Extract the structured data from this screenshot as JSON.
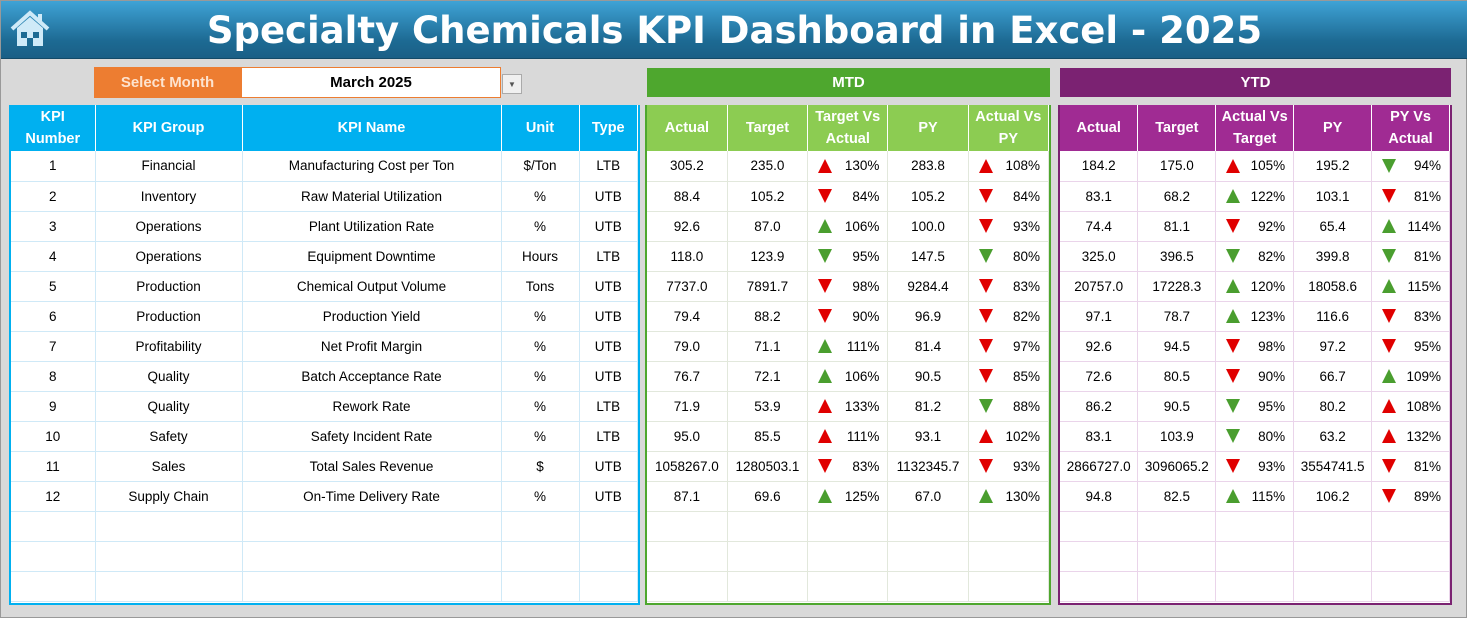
{
  "header": {
    "title": "Specialty Chemicals KPI Dashboard in Excel - 2025",
    "home_icon": "home-icon"
  },
  "selector": {
    "label": "Select Month",
    "value": "March 2025"
  },
  "sections": {
    "mtd": "MTD",
    "ytd": "YTD"
  },
  "colors": {
    "title_bar": "#1d6a93",
    "selector": "#ed7d31",
    "kpi_header": "#00b0f0",
    "mtd_band": "#4ea72e",
    "mtd_header": "#8ccc52",
    "ytd_band": "#7b2272",
    "ytd_header": "#a02b93",
    "red": "#e00000",
    "green": "#4a9e2f"
  },
  "kpi_columns": [
    "KPI Number",
    "KPI Group",
    "KPI Name",
    "Unit",
    "Type"
  ],
  "mtd_columns": [
    "Actual",
    "Target",
    "Target Vs Actual",
    "PY",
    "Actual Vs PY"
  ],
  "ytd_columns": [
    "Actual",
    "Target",
    "Actual Vs Target",
    "PY",
    "PY Vs Actual"
  ],
  "rows": [
    {
      "num": "1",
      "group": "Financial",
      "name": "Manufacturing Cost per Ton",
      "unit": "$/Ton",
      "type": "LTB",
      "mtd": {
        "actual": "305.2",
        "target": "235.0",
        "tva": {
          "dir": "up",
          "color": "red",
          "pct": "130%"
        },
        "py": "283.8",
        "avp": {
          "dir": "up",
          "color": "red",
          "pct": "108%"
        }
      },
      "ytd": {
        "actual": "184.2",
        "target": "175.0",
        "avt": {
          "dir": "up",
          "color": "red",
          "pct": "105%"
        },
        "py": "195.2",
        "pva": {
          "dir": "down",
          "color": "green",
          "pct": "94%"
        }
      }
    },
    {
      "num": "2",
      "group": "Inventory",
      "name": "Raw Material Utilization",
      "unit": "%",
      "type": "UTB",
      "mtd": {
        "actual": "88.4",
        "target": "105.2",
        "tva": {
          "dir": "down",
          "color": "red",
          "pct": "84%"
        },
        "py": "105.2",
        "avp": {
          "dir": "down",
          "color": "red",
          "pct": "84%"
        }
      },
      "ytd": {
        "actual": "83.1",
        "target": "68.2",
        "avt": {
          "dir": "up",
          "color": "green",
          "pct": "122%"
        },
        "py": "103.1",
        "pva": {
          "dir": "down",
          "color": "red",
          "pct": "81%"
        }
      }
    },
    {
      "num": "3",
      "group": "Operations",
      "name": "Plant Utilization Rate",
      "unit": "%",
      "type": "UTB",
      "mtd": {
        "actual": "92.6",
        "target": "87.0",
        "tva": {
          "dir": "up",
          "color": "green",
          "pct": "106%"
        },
        "py": "100.0",
        "avp": {
          "dir": "down",
          "color": "red",
          "pct": "93%"
        }
      },
      "ytd": {
        "actual": "74.4",
        "target": "81.1",
        "avt": {
          "dir": "down",
          "color": "red",
          "pct": "92%"
        },
        "py": "65.4",
        "pva": {
          "dir": "up",
          "color": "green",
          "pct": "114%"
        }
      }
    },
    {
      "num": "4",
      "group": "Operations",
      "name": "Equipment Downtime",
      "unit": "Hours",
      "type": "LTB",
      "mtd": {
        "actual": "118.0",
        "target": "123.9",
        "tva": {
          "dir": "down",
          "color": "green",
          "pct": "95%"
        },
        "py": "147.5",
        "avp": {
          "dir": "down",
          "color": "green",
          "pct": "80%"
        }
      },
      "ytd": {
        "actual": "325.0",
        "target": "396.5",
        "avt": {
          "dir": "down",
          "color": "green",
          "pct": "82%"
        },
        "py": "399.8",
        "pva": {
          "dir": "down",
          "color": "green",
          "pct": "81%"
        }
      }
    },
    {
      "num": "5",
      "group": "Production",
      "name": "Chemical Output Volume",
      "unit": "Tons",
      "type": "UTB",
      "mtd": {
        "actual": "7737.0",
        "target": "7891.7",
        "tva": {
          "dir": "down",
          "color": "red",
          "pct": "98%"
        },
        "py": "9284.4",
        "avp": {
          "dir": "down",
          "color": "red",
          "pct": "83%"
        }
      },
      "ytd": {
        "actual": "20757.0",
        "target": "17228.3",
        "avt": {
          "dir": "up",
          "color": "green",
          "pct": "120%"
        },
        "py": "18058.6",
        "pva": {
          "dir": "up",
          "color": "green",
          "pct": "115%"
        }
      }
    },
    {
      "num": "6",
      "group": "Production",
      "name": "Production Yield",
      "unit": "%",
      "type": "UTB",
      "mtd": {
        "actual": "79.4",
        "target": "88.2",
        "tva": {
          "dir": "down",
          "color": "red",
          "pct": "90%"
        },
        "py": "96.9",
        "avp": {
          "dir": "down",
          "color": "red",
          "pct": "82%"
        }
      },
      "ytd": {
        "actual": "97.1",
        "target": "78.7",
        "avt": {
          "dir": "up",
          "color": "green",
          "pct": "123%"
        },
        "py": "116.6",
        "pva": {
          "dir": "down",
          "color": "red",
          "pct": "83%"
        }
      }
    },
    {
      "num": "7",
      "group": "Profitability",
      "name": "Net Profit Margin",
      "unit": "%",
      "type": "UTB",
      "mtd": {
        "actual": "79.0",
        "target": "71.1",
        "tva": {
          "dir": "up",
          "color": "green",
          "pct": "111%"
        },
        "py": "81.4",
        "avp": {
          "dir": "down",
          "color": "red",
          "pct": "97%"
        }
      },
      "ytd": {
        "actual": "92.6",
        "target": "94.5",
        "avt": {
          "dir": "down",
          "color": "red",
          "pct": "98%"
        },
        "py": "97.2",
        "pva": {
          "dir": "down",
          "color": "red",
          "pct": "95%"
        }
      }
    },
    {
      "num": "8",
      "group": "Quality",
      "name": "Batch Acceptance Rate",
      "unit": "%",
      "type": "UTB",
      "mtd": {
        "actual": "76.7",
        "target": "72.1",
        "tva": {
          "dir": "up",
          "color": "green",
          "pct": "106%"
        },
        "py": "90.5",
        "avp": {
          "dir": "down",
          "color": "red",
          "pct": "85%"
        }
      },
      "ytd": {
        "actual": "72.6",
        "target": "80.5",
        "avt": {
          "dir": "down",
          "color": "red",
          "pct": "90%"
        },
        "py": "66.7",
        "pva": {
          "dir": "up",
          "color": "green",
          "pct": "109%"
        }
      }
    },
    {
      "num": "9",
      "group": "Quality",
      "name": "Rework Rate",
      "unit": "%",
      "type": "LTB",
      "mtd": {
        "actual": "71.9",
        "target": "53.9",
        "tva": {
          "dir": "up",
          "color": "red",
          "pct": "133%"
        },
        "py": "81.2",
        "avp": {
          "dir": "down",
          "color": "green",
          "pct": "88%"
        }
      },
      "ytd": {
        "actual": "86.2",
        "target": "90.5",
        "avt": {
          "dir": "down",
          "color": "green",
          "pct": "95%"
        },
        "py": "80.2",
        "pva": {
          "dir": "up",
          "color": "red",
          "pct": "108%"
        }
      }
    },
    {
      "num": "10",
      "group": "Safety",
      "name": "Safety Incident Rate",
      "unit": "%",
      "type": "LTB",
      "mtd": {
        "actual": "95.0",
        "target": "85.5",
        "tva": {
          "dir": "up",
          "color": "red",
          "pct": "111%"
        },
        "py": "93.1",
        "avp": {
          "dir": "up",
          "color": "red",
          "pct": "102%"
        }
      },
      "ytd": {
        "actual": "83.1",
        "target": "103.9",
        "avt": {
          "dir": "down",
          "color": "green",
          "pct": "80%"
        },
        "py": "63.2",
        "pva": {
          "dir": "up",
          "color": "red",
          "pct": "132%"
        }
      }
    },
    {
      "num": "11",
      "group": "Sales",
      "name": "Total Sales Revenue",
      "unit": "$",
      "type": "UTB",
      "mtd": {
        "actual": "1058267.0",
        "target": "1280503.1",
        "tva": {
          "dir": "down",
          "color": "red",
          "pct": "83%"
        },
        "py": "1132345.7",
        "avp": {
          "dir": "down",
          "color": "red",
          "pct": "93%"
        }
      },
      "ytd": {
        "actual": "2866727.0",
        "target": "3096065.2",
        "avt": {
          "dir": "down",
          "color": "red",
          "pct": "93%"
        },
        "py": "3554741.5",
        "pva": {
          "dir": "down",
          "color": "red",
          "pct": "81%"
        }
      }
    },
    {
      "num": "12",
      "group": "Supply Chain",
      "name": "On-Time Delivery Rate",
      "unit": "%",
      "type": "UTB",
      "mtd": {
        "actual": "87.1",
        "target": "69.6",
        "tva": {
          "dir": "up",
          "color": "green",
          "pct": "125%"
        },
        "py": "67.0",
        "avp": {
          "dir": "up",
          "color": "green",
          "pct": "130%"
        }
      },
      "ytd": {
        "actual": "94.8",
        "target": "82.5",
        "avt": {
          "dir": "up",
          "color": "green",
          "pct": "115%"
        },
        "py": "106.2",
        "pva": {
          "dir": "down",
          "color": "red",
          "pct": "89%"
        }
      }
    }
  ]
}
